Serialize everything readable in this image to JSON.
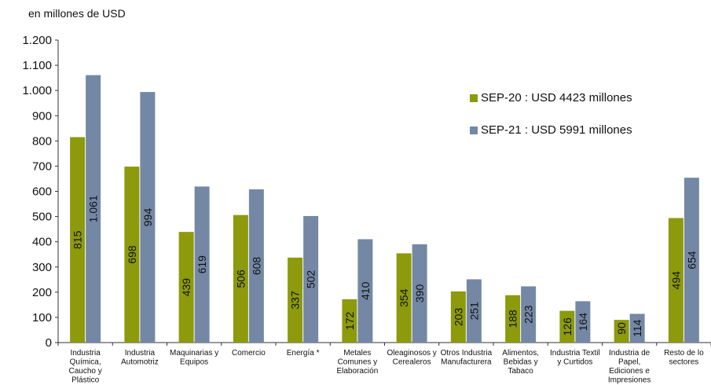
{
  "chart_data": {
    "type": "bar",
    "unit_label": "en millones de USD",
    "categories": [
      [
        "Industria",
        "Química,",
        "Caucho y",
        "Plástico"
      ],
      [
        "Industria",
        "Automotriz"
      ],
      [
        "Maquinarias y",
        "Equipos"
      ],
      [
        "Comercio"
      ],
      [
        "Energía *"
      ],
      [
        "Metales",
        "Comunes y",
        "Elaboración"
      ],
      [
        "Oleaginosos y",
        "Cerealeros"
      ],
      [
        "Otros Industria",
        "Manufacturera"
      ],
      [
        "Alimentos,",
        "Bebidas y",
        "Tabaco"
      ],
      [
        "Industria Textil",
        "y Curtidos"
      ],
      [
        "Industria de",
        "Papel,",
        "Ediciones e",
        "Impresiones"
      ],
      [
        "Resto de lo",
        "sectores"
      ]
    ],
    "series": [
      {
        "name": "SEP-20 : USD 4423 millones",
        "color": "#8C9A0C",
        "values": [
          815,
          698,
          439,
          506,
          337,
          172,
          354,
          203,
          188,
          126,
          90,
          494
        ],
        "labels": [
          "815",
          "698",
          "439",
          "506",
          "337",
          "172",
          "354",
          "203",
          "188",
          "126",
          "90",
          "494"
        ]
      },
      {
        "name": "SEP-21 : USD 5991 millones",
        "color": "#7488A6",
        "values": [
          1061,
          994,
          619,
          608,
          502,
          410,
          390,
          251,
          223,
          164,
          114,
          654
        ],
        "labels": [
          "1.061",
          "994",
          "619",
          "608",
          "502",
          "410",
          "390",
          "251",
          "223",
          "164",
          "114",
          "654"
        ]
      }
    ],
    "ylim": [
      0,
      1200
    ],
    "yticks": [
      0,
      100,
      200,
      300,
      400,
      500,
      600,
      700,
      800,
      900,
      1000,
      1100,
      1200
    ],
    "ytick_labels": [
      "0",
      "100",
      "200",
      "300",
      "400",
      "500",
      "600",
      "700",
      "800",
      "900",
      "1.000",
      "1.100",
      "1.200"
    ],
    "legend_position": "right",
    "grid": false
  }
}
